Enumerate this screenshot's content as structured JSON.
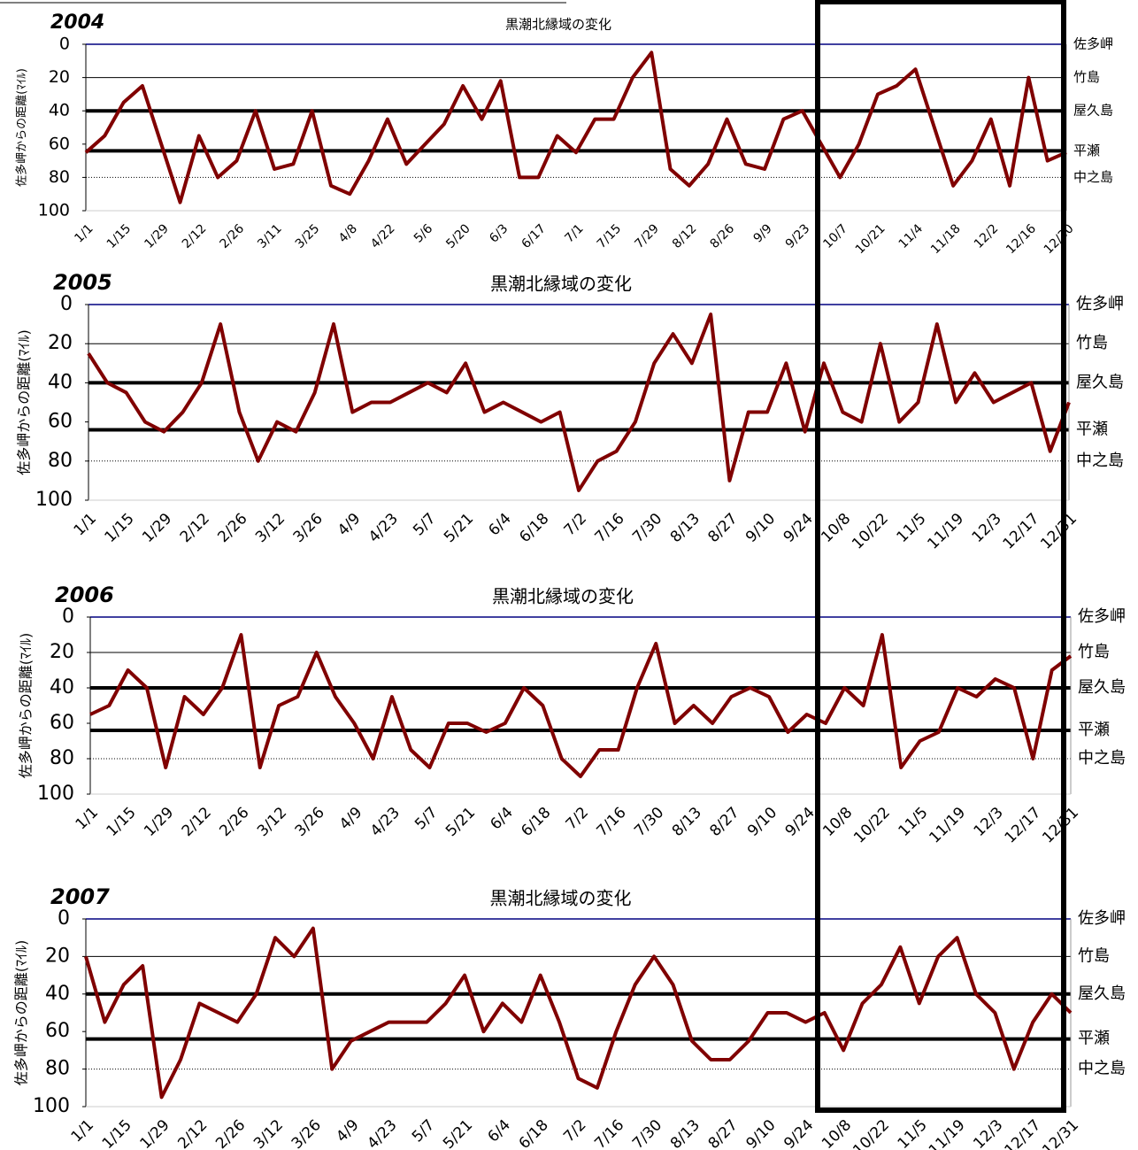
{
  "chart_data": [
    {
      "type": "line",
      "annotation": "2004",
      "title": "黒潮北縁域の変化",
      "y_label": "佐多岬からの距離(ﾏｲﾙ)",
      "categories": [
        "1/1",
        null,
        "1/15",
        null,
        "1/29",
        null,
        "2/12",
        null,
        "2/26",
        null,
        "3/11",
        null,
        "3/25",
        null,
        "4/8",
        null,
        "4/22",
        null,
        "5/6",
        null,
        "5/20",
        null,
        "6/3",
        null,
        "6/17",
        null,
        "7/1",
        null,
        "7/15",
        null,
        "7/29",
        null,
        "8/12",
        null,
        "8/26",
        null,
        "9/9",
        null,
        "9/23",
        null,
        "10/7",
        null,
        "10/21",
        null,
        "11/4",
        null,
        "11/18",
        null,
        "12/2",
        null,
        "12/16",
        null,
        "12/30"
      ],
      "values": [
        65,
        55,
        35,
        25,
        60,
        95,
        55,
        80,
        70,
        40,
        75,
        72,
        40,
        85,
        90,
        70,
        45,
        72,
        60,
        48,
        25,
        45,
        22,
        80,
        80,
        55,
        65,
        45,
        45,
        20,
        5,
        75,
        85,
        72,
        45,
        72,
        75,
        45,
        40,
        60,
        80,
        60,
        30,
        25,
        15,
        50,
        85,
        70,
        45,
        85,
        20,
        70,
        65
      ],
      "color": "#800000",
      "ylim": [
        100,
        0
      ],
      "yticks": [
        0,
        20,
        40,
        60,
        80,
        100
      ],
      "reference_lines": [
        {
          "value": 0,
          "label": "佐多岬",
          "style": "axis"
        },
        {
          "value": 20,
          "label": "竹島",
          "style": "thin"
        },
        {
          "value": 40,
          "label": "屋久島",
          "style": "thick"
        },
        {
          "value": 64,
          "label": "平瀬",
          "style": "thick"
        },
        {
          "value": 80,
          "label": "中之島",
          "style": "dotted"
        }
      ]
    },
    {
      "type": "line",
      "annotation": "2005",
      "title": "黒潮北縁域の変化",
      "y_label": "佐多岬からの距離(ﾏｲﾙ)",
      "categories": [
        "1/1",
        null,
        "1/15",
        null,
        "1/29",
        null,
        "2/12",
        null,
        "2/26",
        null,
        "3/12",
        null,
        "3/26",
        null,
        "4/9",
        null,
        "4/23",
        null,
        "5/7",
        null,
        "5/21",
        null,
        "6/4",
        null,
        "6/18",
        null,
        "7/2",
        null,
        "7/16",
        null,
        "7/30",
        null,
        "8/13",
        null,
        "8/27",
        null,
        "9/10",
        null,
        "9/24",
        null,
        "10/8",
        null,
        "10/22",
        null,
        "11/5",
        null,
        "11/19",
        null,
        "12/3",
        null,
        "12/17",
        null,
        "12/31"
      ],
      "values": [
        25,
        40,
        45,
        60,
        65,
        55,
        40,
        10,
        55,
        80,
        60,
        65,
        45,
        10,
        55,
        50,
        50,
        45,
        40,
        45,
        30,
        55,
        50,
        55,
        60,
        55,
        95,
        80,
        75,
        60,
        30,
        15,
        30,
        5,
        90,
        55,
        55,
        30,
        65,
        30,
        55,
        60,
        20,
        60,
        50,
        10,
        50,
        35,
        50,
        45,
        40,
        75,
        50
      ],
      "color": "#800000",
      "ylim": [
        100,
        0
      ],
      "yticks": [
        0,
        20,
        40,
        60,
        80,
        100
      ],
      "reference_lines": [
        {
          "value": 0,
          "label": "佐多岬",
          "style": "axis"
        },
        {
          "value": 20,
          "label": "竹島",
          "style": "thin"
        },
        {
          "value": 40,
          "label": "屋久島",
          "style": "thick"
        },
        {
          "value": 64,
          "label": "平瀬",
          "style": "thick"
        },
        {
          "value": 80,
          "label": "中之島",
          "style": "dotted"
        }
      ]
    },
    {
      "type": "line",
      "annotation": "2006",
      "title": "黒潮北縁域の変化",
      "y_label": "佐多岬からの距離(ﾏｲﾙ)",
      "categories": [
        "1/1",
        null,
        "1/15",
        null,
        "1/29",
        null,
        "2/12",
        null,
        "2/26",
        null,
        "3/12",
        null,
        "3/26",
        null,
        "4/9",
        null,
        "4/23",
        null,
        "5/7",
        null,
        "5/21",
        null,
        "6/4",
        null,
        "6/18",
        null,
        "7/2",
        null,
        "7/16",
        null,
        "7/30",
        null,
        "8/13",
        null,
        "8/27",
        null,
        "9/10",
        null,
        "9/24",
        null,
        "10/8",
        null,
        "10/22",
        null,
        "11/5",
        null,
        "11/19",
        null,
        "12/3",
        null,
        "12/17",
        null,
        "12/31"
      ],
      "values": [
        55,
        50,
        30,
        40,
        85,
        45,
        55,
        40,
        10,
        85,
        50,
        45,
        20,
        45,
        60,
        80,
        45,
        75,
        85,
        60,
        60,
        65,
        60,
        40,
        50,
        80,
        90,
        75,
        75,
        40,
        15,
        60,
        50,
        60,
        45,
        40,
        45,
        65,
        55,
        60,
        40,
        50,
        10,
        85,
        70,
        65,
        40,
        45,
        35,
        40,
        80,
        30,
        22
      ],
      "color": "#800000",
      "ylim": [
        100,
        0
      ],
      "yticks": [
        0,
        20,
        40,
        60,
        80,
        100
      ],
      "reference_lines": [
        {
          "value": 0,
          "label": "佐多岬",
          "style": "axis"
        },
        {
          "value": 20,
          "label": "竹島",
          "style": "thin"
        },
        {
          "value": 40,
          "label": "屋久島",
          "style": "thick"
        },
        {
          "value": 64,
          "label": "平瀬",
          "style": "thick"
        },
        {
          "value": 80,
          "label": "中之島",
          "style": "dotted"
        }
      ]
    },
    {
      "type": "line",
      "annotation": "2007",
      "title": "黒潮北縁域の変化",
      "y_label": "佐多岬からの距離(ﾏｲﾙ)",
      "categories": [
        "1/1",
        null,
        "1/15",
        null,
        "1/29",
        null,
        "2/12",
        null,
        "2/26",
        null,
        "3/12",
        null,
        "3/26",
        null,
        "4/9",
        null,
        "4/23",
        null,
        "5/7",
        null,
        "5/21",
        null,
        "6/4",
        null,
        "6/18",
        null,
        "7/2",
        null,
        "7/16",
        null,
        "7/30",
        null,
        "8/13",
        null,
        "8/27",
        null,
        "9/10",
        null,
        "9/24",
        null,
        "10/8",
        null,
        "10/22",
        null,
        "11/5",
        null,
        "11/19",
        null,
        "12/3",
        null,
        "12/17",
        null,
        "12/31"
      ],
      "values": [
        20,
        55,
        35,
        25,
        95,
        75,
        45,
        50,
        55,
        40,
        10,
        20,
        5,
        80,
        65,
        60,
        55,
        55,
        55,
        45,
        30,
        60,
        45,
        55,
        30,
        55,
        85,
        90,
        60,
        35,
        20,
        35,
        65,
        75,
        75,
        65,
        50,
        50,
        55,
        50,
        70,
        45,
        35,
        15,
        45,
        20,
        10,
        40,
        50,
        80,
        55,
        40,
        50
      ],
      "color": "#800000",
      "ylim": [
        100,
        0
      ],
      "yticks": [
        0,
        20,
        40,
        60,
        80,
        100
      ],
      "reference_lines": [
        {
          "value": 0,
          "label": "佐多岬",
          "style": "axis"
        },
        {
          "value": 20,
          "label": "竹島",
          "style": "thin"
        },
        {
          "value": 40,
          "label": "屋久島",
          "style": "thick"
        },
        {
          "value": 64,
          "label": "平瀬",
          "style": "thick"
        },
        {
          "value": 80,
          "label": "中之島",
          "style": "dotted"
        }
      ]
    }
  ]
}
